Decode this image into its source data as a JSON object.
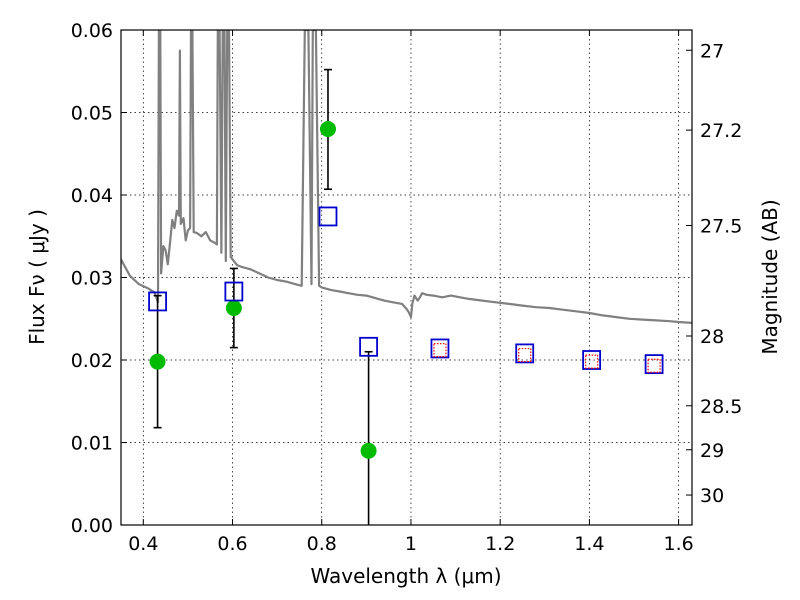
{
  "chart_data": {
    "type": "scatter",
    "xlabel": "Wavelength  λ (μm)",
    "ylabel": "Flux  Fν  ( μJy )",
    "y2label": "Magnitude (AB)",
    "xlim": [
      0.35,
      1.63
    ],
    "ylim": [
      0,
      0.06
    ],
    "grid": true,
    "x_ticks": [
      {
        "value": 0.4,
        "label": "0.4"
      },
      {
        "value": 0.6,
        "label": "0.6"
      },
      {
        "value": 0.8,
        "label": "0.8"
      },
      {
        "value": 1.0,
        "label": "1"
      },
      {
        "value": 1.2,
        "label": "1.2"
      },
      {
        "value": 1.4,
        "label": "1.4"
      },
      {
        "value": 1.6,
        "label": "1.6"
      }
    ],
    "y_ticks": [
      {
        "value": 0.0,
        "label": "0.00"
      },
      {
        "value": 0.01,
        "label": "0.01"
      },
      {
        "value": 0.02,
        "label": "0.02"
      },
      {
        "value": 0.03,
        "label": "0.03"
      },
      {
        "value": 0.04,
        "label": "0.04"
      },
      {
        "value": 0.05,
        "label": "0.05"
      },
      {
        "value": 0.06,
        "label": "0.06"
      }
    ],
    "y2_ticks": [
      {
        "value": 27,
        "label": "27"
      },
      {
        "value": 27.2,
        "label": "27.2"
      },
      {
        "value": 27.5,
        "label": "27.5"
      },
      {
        "value": 28,
        "label": "28"
      },
      {
        "value": 28.5,
        "label": "28.5"
      },
      {
        "value": 29,
        "label": "29"
      },
      {
        "value": 30,
        "label": "30"
      }
    ],
    "series": [
      {
        "kind": "line",
        "color": "#808080",
        "points": [
          [
            0.35,
            0.0322
          ],
          [
            0.37,
            0.0302
          ],
          [
            0.39,
            0.0292
          ],
          [
            0.41,
            0.0287
          ],
          [
            0.425,
            0.0282
          ],
          [
            0.433,
            0.027
          ],
          [
            0.435,
            0.06
          ],
          [
            0.438,
            0.06
          ],
          [
            0.44,
            0.0305
          ],
          [
            0.445,
            0.0338
          ],
          [
            0.45,
            0.0333
          ],
          [
            0.455,
            0.0316
          ],
          [
            0.46,
            0.0343
          ],
          [
            0.465,
            0.037
          ],
          [
            0.47,
            0.036
          ],
          [
            0.475,
            0.0381
          ],
          [
            0.48,
            0.0375
          ],
          [
            0.482,
            0.0575
          ],
          [
            0.484,
            0.0365
          ],
          [
            0.49,
            0.0372
          ],
          [
            0.495,
            0.0345
          ],
          [
            0.5,
            0.0357
          ],
          [
            0.505,
            0.036
          ],
          [
            0.507,
            0.06
          ],
          [
            0.51,
            0.06
          ],
          [
            0.513,
            0.0355
          ],
          [
            0.52,
            0.0354
          ],
          [
            0.53,
            0.035
          ],
          [
            0.54,
            0.0355
          ],
          [
            0.55,
            0.0345
          ],
          [
            0.56,
            0.0342
          ],
          [
            0.565,
            0.034
          ],
          [
            0.567,
            0.06
          ],
          [
            0.571,
            0.06
          ],
          [
            0.575,
            0.033
          ],
          [
            0.578,
            0.06
          ],
          [
            0.582,
            0.06
          ],
          [
            0.585,
            0.032
          ],
          [
            0.588,
            0.06
          ],
          [
            0.592,
            0.06
          ],
          [
            0.596,
            0.0325
          ],
          [
            0.61,
            0.0315
          ],
          [
            0.62,
            0.0313
          ],
          [
            0.64,
            0.031
          ],
          [
            0.66,
            0.0305
          ],
          [
            0.68,
            0.03
          ],
          [
            0.7,
            0.0297
          ],
          [
            0.72,
            0.0295
          ],
          [
            0.74,
            0.0292
          ],
          [
            0.755,
            0.029
          ],
          [
            0.762,
            0.06
          ],
          [
            0.77,
            0.06
          ],
          [
            0.777,
            0.0292
          ],
          [
            0.78,
            0.06
          ],
          [
            0.787,
            0.06
          ],
          [
            0.794,
            0.029
          ],
          [
            0.8,
            0.0288
          ],
          [
            0.82,
            0.0285
          ],
          [
            0.84,
            0.0283
          ],
          [
            0.86,
            0.0281
          ],
          [
            0.88,
            0.0279
          ],
          [
            0.9,
            0.0278
          ],
          [
            0.92,
            0.0275
          ],
          [
            0.94,
            0.0272
          ],
          [
            0.96,
            0.027
          ],
          [
            0.98,
            0.0268
          ],
          [
            0.99,
            0.0262
          ],
          [
            0.995,
            0.0258
          ],
          [
            1.0,
            0.0252
          ],
          [
            1.003,
            0.0268
          ],
          [
            1.008,
            0.0278
          ],
          [
            1.015,
            0.0272
          ],
          [
            1.02,
            0.0276
          ],
          [
            1.025,
            0.0281
          ],
          [
            1.035,
            0.0279
          ],
          [
            1.05,
            0.0278
          ],
          [
            1.07,
            0.0276
          ],
          [
            1.09,
            0.0278
          ],
          [
            1.11,
            0.0276
          ],
          [
            1.13,
            0.0274
          ],
          [
            1.16,
            0.0272
          ],
          [
            1.19,
            0.027
          ],
          [
            1.22,
            0.0268
          ],
          [
            1.25,
            0.0266
          ],
          [
            1.28,
            0.0264
          ],
          [
            1.31,
            0.0263
          ],
          [
            1.34,
            0.0261
          ],
          [
            1.37,
            0.0259
          ],
          [
            1.4,
            0.0257
          ],
          [
            1.43,
            0.0254
          ],
          [
            1.46,
            0.0252
          ],
          [
            1.49,
            0.025
          ],
          [
            1.52,
            0.0249
          ],
          [
            1.55,
            0.0248
          ],
          [
            1.58,
            0.0247
          ],
          [
            1.6,
            0.0246
          ],
          [
            1.63,
            0.0245
          ]
        ]
      },
      {
        "kind": "points",
        "marker": "circle",
        "color": "#00bb00",
        "points": [
          {
            "x": 0.432,
            "y": 0.0198,
            "ylo": 0.0118,
            "yhi": 0.0278
          },
          {
            "x": 0.603,
            "y": 0.0263,
            "ylo": 0.0215,
            "yhi": 0.0311
          },
          {
            "x": 0.814,
            "y": 0.048,
            "ylo": 0.0407,
            "yhi": 0.0552
          },
          {
            "x": 0.905,
            "y": 0.009,
            "ylo": 0.0,
            "yhi": 0.021
          }
        ]
      },
      {
        "kind": "points",
        "marker": "square",
        "color": "#0000cc",
        "points": [
          {
            "x": 0.432,
            "y": 0.0271
          },
          {
            "x": 0.603,
            "y": 0.0283
          },
          {
            "x": 0.814,
            "y": 0.0374
          },
          {
            "x": 0.905,
            "y": 0.0216
          },
          {
            "x": 1.065,
            "y": 0.0214
          },
          {
            "x": 1.255,
            "y": 0.0208
          },
          {
            "x": 1.405,
            "y": 0.02
          },
          {
            "x": 1.545,
            "y": 0.0195
          }
        ]
      },
      {
        "kind": "points",
        "marker": "square-dotted",
        "color": "#ff0000",
        "points": [
          {
            "x": 1.065,
            "y": 0.0212
          },
          {
            "x": 1.255,
            "y": 0.0206
          },
          {
            "x": 1.405,
            "y": 0.0198
          },
          {
            "x": 1.545,
            "y": 0.0193
          }
        ]
      }
    ]
  }
}
